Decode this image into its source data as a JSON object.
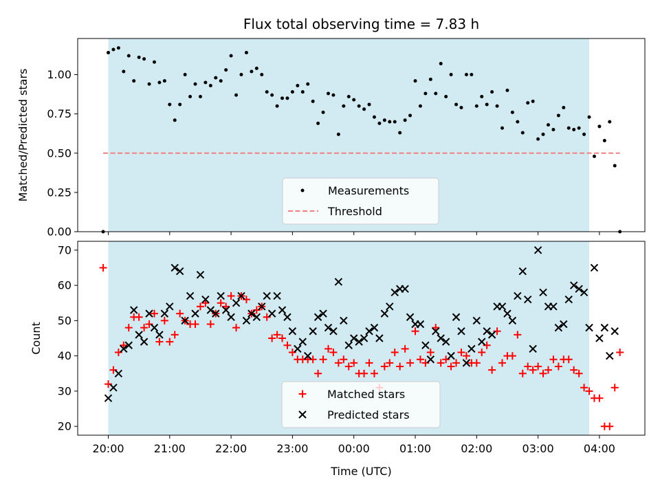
{
  "chart_data": [
    {
      "type": "scatter",
      "title": "Flux total observing time = 7.83 h",
      "ylabel": "Matched/Predicted stars",
      "ylim": [
        0,
        1.23
      ],
      "yticks": [
        "0.00",
        "0.25",
        "0.50",
        "0.75",
        "1.00"
      ],
      "shaded_interval": [
        "20:00",
        "03:50"
      ],
      "shade_color": "#add8e6",
      "legend_position": "lower center",
      "series": [
        {
          "name": "Measurements",
          "color": "#000000",
          "marker": "dot",
          "x": [
            "19:55",
            "20:00",
            "20:05",
            "20:10",
            "20:15",
            "20:20",
            "20:25",
            "20:30",
            "20:35",
            "20:40",
            "20:45",
            "20:50",
            "20:55",
            "21:00",
            "21:05",
            "21:10",
            "21:15",
            "21:20",
            "21:25",
            "21:30",
            "21:35",
            "21:40",
            "21:45",
            "21:50",
            "21:55",
            "22:00",
            "22:05",
            "22:10",
            "22:15",
            "22:20",
            "22:25",
            "22:30",
            "22:35",
            "22:40",
            "22:45",
            "22:50",
            "22:55",
            "23:00",
            "23:05",
            "23:10",
            "23:15",
            "23:20",
            "23:25",
            "23:30",
            "23:35",
            "23:40",
            "23:45",
            "23:50",
            "23:55",
            "00:00",
            "00:05",
            "00:10",
            "00:15",
            "00:20",
            "00:25",
            "00:30",
            "00:35",
            "00:40",
            "00:45",
            "00:50",
            "00:55",
            "01:00",
            "01:05",
            "01:10",
            "01:15",
            "01:20",
            "01:25",
            "01:30",
            "01:35",
            "01:40",
            "01:45",
            "01:50",
            "01:55",
            "02:00",
            "02:05",
            "02:10",
            "02:15",
            "02:20",
            "02:25",
            "02:30",
            "02:35",
            "02:40",
            "02:45",
            "02:50",
            "02:55",
            "03:00",
            "03:05",
            "03:10",
            "03:15",
            "03:20",
            "03:25",
            "03:30",
            "03:35",
            "03:40",
            "03:45",
            "03:50",
            "03:55",
            "04:00",
            "04:05",
            "04:10",
            "04:15",
            "04:20"
          ],
          "y": [
            0.0,
            1.14,
            1.16,
            1.17,
            1.02,
            1.12,
            0.96,
            1.11,
            1.1,
            0.94,
            1.08,
            0.95,
            0.96,
            0.81,
            0.71,
            0.81,
            1.0,
            0.86,
            0.94,
            0.86,
            0.95,
            0.93,
            0.98,
            0.96,
            1.03,
            1.12,
            0.87,
            1.0,
            1.14,
            1.02,
            1.04,
            1.0,
            0.89,
            0.87,
            0.8,
            0.85,
            0.85,
            0.89,
            0.93,
            0.89,
            0.94,
            0.83,
            0.69,
            0.76,
            0.88,
            0.87,
            0.62,
            0.8,
            0.86,
            0.84,
            0.8,
            0.78,
            0.81,
            0.73,
            0.69,
            0.71,
            0.7,
            0.7,
            0.63,
            0.71,
            0.74,
            0.96,
            0.8,
            0.88,
            0.97,
            0.88,
            1.07,
            0.86,
            1.0,
            0.81,
            0.79,
            1.0,
            1.0,
            0.8,
            0.86,
            0.81,
            0.89,
            0.8,
            0.66,
            0.9,
            0.76,
            0.7,
            0.63,
            0.82,
            0.83,
            0.59,
            0.62,
            0.68,
            0.65,
            0.74,
            0.79,
            0.66,
            0.65,
            0.66,
            0.62,
            0.73,
            0.48,
            0.67,
            0.58,
            0.7,
            0.42,
            0.0
          ]
        },
        {
          "name": "Threshold",
          "color": "#f08080",
          "style": "dashed",
          "x": [
            "19:55",
            "04:20"
          ],
          "y": [
            0.5,
            0.5
          ]
        }
      ]
    },
    {
      "type": "scatter",
      "xlabel": "Time (UTC)",
      "ylabel": "Count",
      "ylim": [
        17.5,
        72.5
      ],
      "yticks": [
        "20",
        "30",
        "40",
        "50",
        "60",
        "70"
      ],
      "xticks": [
        "20:00",
        "21:00",
        "22:00",
        "23:00",
        "00:00",
        "01:00",
        "02:00",
        "03:00",
        "04:00"
      ],
      "shaded_interval": [
        "20:00",
        "03:50"
      ],
      "shade_color": "#add8e6",
      "legend_position": "lower center",
      "series": [
        {
          "name": "Matched stars",
          "color": "#ff0000",
          "marker": "plus",
          "x": [
            "19:55",
            "20:00",
            "20:05",
            "20:10",
            "20:15",
            "20:20",
            "20:25",
            "20:30",
            "20:35",
            "20:40",
            "20:45",
            "20:50",
            "20:55",
            "21:00",
            "21:05",
            "21:10",
            "21:15",
            "21:20",
            "21:25",
            "21:30",
            "21:35",
            "21:40",
            "21:45",
            "21:50",
            "21:55",
            "22:00",
            "22:05",
            "22:10",
            "22:15",
            "22:20",
            "22:25",
            "22:30",
            "22:35",
            "22:40",
            "22:45",
            "22:50",
            "22:55",
            "23:00",
            "23:05",
            "23:10",
            "23:15",
            "23:20",
            "23:25",
            "23:30",
            "23:35",
            "23:40",
            "23:45",
            "23:50",
            "23:55",
            "00:00",
            "00:05",
            "00:10",
            "00:15",
            "00:20",
            "00:25",
            "00:30",
            "00:35",
            "00:40",
            "00:45",
            "00:50",
            "00:55",
            "01:00",
            "01:05",
            "01:10",
            "01:15",
            "01:20",
            "01:25",
            "01:30",
            "01:35",
            "01:40",
            "01:45",
            "01:50",
            "01:55",
            "02:00",
            "02:05",
            "02:10",
            "02:15",
            "02:20",
            "02:25",
            "02:30",
            "02:35",
            "02:40",
            "02:45",
            "02:50",
            "02:55",
            "03:00",
            "03:05",
            "03:10",
            "03:15",
            "03:20",
            "03:25",
            "03:30",
            "03:35",
            "03:40",
            "03:45",
            "03:50",
            "03:55",
            "04:00",
            "04:05",
            "04:10",
            "04:15",
            "04:20"
          ],
          "y": [
            65,
            32,
            36,
            41,
            43,
            48,
            51,
            51,
            48,
            49,
            52,
            44,
            50,
            44,
            46,
            52,
            50,
            49,
            49,
            54,
            55,
            49,
            52,
            55,
            54,
            57,
            48,
            57,
            56,
            52,
            53,
            54,
            51,
            45,
            46,
            45,
            43,
            41,
            39,
            39,
            39,
            39,
            35,
            39,
            42,
            41,
            38,
            39,
            37,
            38,
            35,
            35,
            38,
            35,
            31,
            37,
            38,
            41,
            37,
            42,
            38,
            47,
            39,
            38,
            41,
            48,
            38,
            39,
            37,
            38,
            41,
            40,
            38,
            38,
            41,
            43,
            36,
            47,
            38,
            40,
            40,
            46,
            35,
            37,
            36,
            37,
            35,
            36,
            39,
            37,
            39,
            39,
            36,
            35,
            31,
            30,
            28,
            28,
            20,
            20,
            31,
            41
          ]
        },
        {
          "name": "Predicted stars",
          "color": "#000000",
          "marker": "x",
          "x": [
            "20:00",
            "20:05",
            "20:10",
            "20:15",
            "20:20",
            "20:25",
            "20:30",
            "20:35",
            "20:40",
            "20:45",
            "20:50",
            "20:55",
            "21:00",
            "21:05",
            "21:10",
            "21:15",
            "21:20",
            "21:25",
            "21:30",
            "21:35",
            "21:40",
            "21:45",
            "21:50",
            "21:55",
            "22:00",
            "22:05",
            "22:10",
            "22:15",
            "22:20",
            "22:25",
            "22:30",
            "22:35",
            "22:40",
            "22:45",
            "22:50",
            "22:55",
            "23:00",
            "23:05",
            "23:10",
            "23:15",
            "23:20",
            "23:25",
            "23:30",
            "23:35",
            "23:40",
            "23:45",
            "23:50",
            "23:55",
            "00:00",
            "00:05",
            "00:10",
            "00:15",
            "00:20",
            "00:25",
            "00:30",
            "00:35",
            "00:40",
            "00:45",
            "00:50",
            "00:55",
            "01:00",
            "01:05",
            "01:10",
            "01:15",
            "01:20",
            "01:25",
            "01:30",
            "01:35",
            "01:40",
            "01:45",
            "01:50",
            "01:55",
            "02:00",
            "02:05",
            "02:10",
            "02:15",
            "02:20",
            "02:25",
            "02:30",
            "02:35",
            "02:40",
            "02:45",
            "02:50",
            "02:55",
            "03:00",
            "03:05",
            "03:10",
            "03:15",
            "03:20",
            "03:25",
            "03:30",
            "03:35",
            "03:40",
            "03:45",
            "03:50",
            "03:55",
            "04:00",
            "04:05",
            "04:10",
            "04:15"
          ],
          "y": [
            28,
            31,
            35,
            42,
            43,
            53,
            46,
            44,
            52,
            48,
            46,
            52,
            54,
            65,
            64,
            50,
            57,
            52,
            63,
            56,
            53,
            52,
            57,
            53,
            51,
            55,
            57,
            50,
            52,
            51,
            54,
            57,
            52,
            57,
            53,
            51,
            47,
            42,
            44,
            40,
            47,
            51,
            52,
            48,
            47,
            61,
            50,
            43,
            45,
            44,
            45,
            47,
            48,
            45,
            52,
            54,
            58,
            59,
            59,
            51,
            49,
            49,
            43,
            39,
            47,
            45,
            44,
            40,
            51,
            47,
            38,
            42,
            50,
            44,
            47,
            46,
            54,
            54,
            52,
            50,
            57,
            64,
            56,
            42,
            70,
            58,
            54,
            54,
            48,
            49,
            56,
            60,
            59,
            58,
            48,
            65,
            45,
            48,
            40,
            47
          ]
        }
      ]
    }
  ]
}
